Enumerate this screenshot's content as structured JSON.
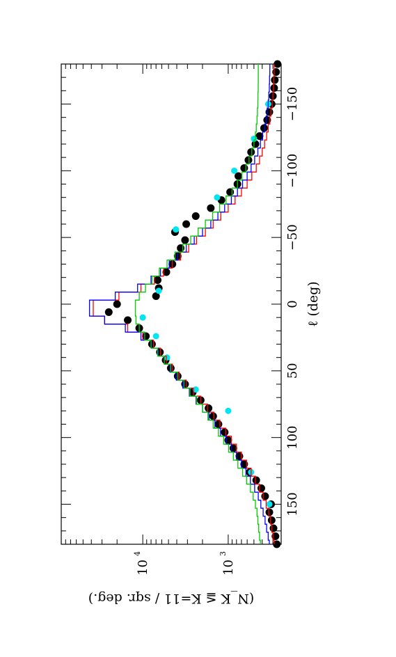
{
  "chart_data": {
    "type": "scatter",
    "orientation": "rotated-90",
    "xlabel": "ℓ (deg)",
    "ylabel": "(N_K ≦ K=11 / sqr. deg.)",
    "y_scale": "log",
    "xlim": [
      180,
      -180
    ],
    "ylim": [
      240,
      90000
    ],
    "x_ticks": [
      150,
      100,
      50,
      0,
      -50,
      -100,
      -150
    ],
    "x_tick_labels": [
      "150",
      "100",
      "50",
      "0",
      "−50",
      "−100",
      "−150"
    ],
    "y_tick_labels": [
      {
        "value": 10000,
        "base": "10",
        "exp": "4"
      },
      {
        "value": 1000,
        "base": "10",
        "exp": "3"
      }
    ],
    "grid": false,
    "series": [
      {
        "color": "#000000",
        "style": "dots",
        "x": [
          180,
          174,
          168,
          162,
          156,
          150,
          144,
          138,
          132,
          126,
          120,
          114,
          108,
          102,
          96,
          90,
          84,
          78,
          72,
          66,
          60,
          54,
          48,
          42,
          36,
          30,
          24,
          18,
          12,
          6,
          0,
          -6,
          -12,
          -18,
          -24,
          -30,
          -36,
          -42,
          -48,
          -54,
          -60,
          -66,
          -72,
          -78,
          -84,
          -90,
          -96,
          -102,
          -108,
          -114,
          -120,
          -126,
          -132,
          -138,
          -144,
          -150,
          -156,
          -162,
          -168,
          -174,
          -180
        ],
        "y": [
          270,
          280,
          295,
          310,
          330,
          315,
          370,
          410,
          470,
          560,
          650,
          740,
          870,
          1000,
          1100,
          1300,
          1500,
          1700,
          2100,
          2600,
          3200,
          3900,
          4700,
          5400,
          6300,
          7800,
          9200,
          11000,
          15000,
          25000,
          20000,
          7000,
          6500,
          6700,
          5300,
          4500,
          3900,
          3600,
          3200,
          4200,
          3100,
          2400,
          1600,
          1200,
          950,
          780,
          760,
          650,
          580,
          540,
          480,
          430,
          380,
          350,
          330,
          310,
          300,
          290,
          285,
          275,
          265
        ]
      },
      {
        "color": "#00e5ee",
        "style": "dots",
        "x": [
          150,
          126,
          80,
          64,
          40,
          24,
          10,
          -10,
          -56,
          -80,
          -100,
          -124,
          -150
        ],
        "y": [
          330,
          540,
          1000,
          2400,
          5200,
          7000,
          10000,
          6500,
          4100,
          1350,
          850,
          500,
          340
        ]
      },
      {
        "color": "#ff0000",
        "style": "step",
        "x": [
          180,
          174,
          168,
          162,
          156,
          150,
          144,
          138,
          132,
          126,
          120,
          114,
          108,
          102,
          96,
          90,
          84,
          78,
          72,
          66,
          60,
          54,
          48,
          42,
          36,
          30,
          24,
          18,
          12,
          6,
          0,
          -6,
          -12,
          -18,
          -24,
          -30,
          -36,
          -42,
          -48,
          -54,
          -60,
          -66,
          -72,
          -78,
          -84,
          -90,
          -96,
          -102,
          -108,
          -114,
          -120,
          -126,
          -132,
          -138,
          -144,
          -150,
          -156,
          -162,
          -168,
          -174,
          -180
        ],
        "y": [
          290,
          300,
          310,
          320,
          335,
          360,
          390,
          430,
          480,
          540,
          610,
          700,
          800,
          920,
          1070,
          1250,
          1470,
          1750,
          2100,
          2550,
          3100,
          3750,
          4500,
          5300,
          6200,
          7500,
          10000,
          15000,
          28000,
          38000,
          38000,
          19000,
          10500,
          7300,
          5700,
          4500,
          3600,
          2900,
          2350,
          1850,
          1500,
          1220,
          1000,
          830,
          700,
          600,
          530,
          470,
          430,
          400,
          375,
          355,
          340,
          325,
          315,
          305,
          300,
          295,
          292,
          290,
          290
        ]
      },
      {
        "color": "#0000ff",
        "style": "step",
        "x": [
          180,
          174,
          168,
          162,
          156,
          150,
          144,
          138,
          132,
          126,
          120,
          114,
          108,
          102,
          96,
          90,
          84,
          78,
          72,
          66,
          60,
          54,
          48,
          42,
          36,
          30,
          24,
          18,
          12,
          6,
          0,
          -6,
          -12,
          -18,
          -24,
          -30,
          -36,
          -42,
          -48,
          -54,
          -60,
          -66,
          -72,
          -78,
          -84,
          -90,
          -96,
          -102,
          -108,
          -114,
          -120,
          -126,
          -132,
          -138,
          -144,
          -150,
          -156,
          -162,
          -168,
          -174,
          -180
        ],
        "y": [
          330,
          340,
          355,
          370,
          390,
          415,
          445,
          490,
          550,
          620,
          700,
          800,
          920,
          1060,
          1230,
          1430,
          1680,
          2000,
          2380,
          2850,
          3400,
          4050,
          4800,
          5600,
          6600,
          7900,
          10500,
          16000,
          28000,
          42000,
          42000,
          21000,
          11500,
          8000,
          6200,
          4900,
          3900,
          3100,
          2500,
          2000,
          1600,
          1320,
          1100,
          920,
          780,
          680,
          600,
          540,
          490,
          450,
          420,
          395,
          375,
          360,
          350,
          340,
          335,
          330,
          328,
          326,
          325
        ]
      },
      {
        "color": "#00cc00",
        "style": "step",
        "x": [
          180,
          174,
          168,
          162,
          156,
          150,
          144,
          138,
          132,
          126,
          120,
          114,
          108,
          102,
          96,
          90,
          84,
          78,
          72,
          66,
          60,
          54,
          48,
          42,
          36,
          30,
          24,
          18,
          12,
          6,
          0,
          -6,
          -12,
          -18,
          -24,
          -30,
          -36,
          -42,
          -48,
          -54,
          -60,
          -66,
          -72,
          -78,
          -84,
          -90,
          -96,
          -102,
          -108,
          -114,
          -120,
          -126,
          -132,
          -138,
          -144,
          -150,
          -156,
          -162,
          -168,
          -174,
          -180
        ],
        "y": [
          420,
          430,
          440,
          450,
          460,
          480,
          510,
          550,
          610,
          680,
          770,
          870,
          990,
          1130,
          1300,
          1500,
          1730,
          2000,
          2350,
          2800,
          3300,
          3900,
          4700,
          5600,
          6700,
          8000,
          9500,
          11000,
          12000,
          12200,
          12200,
          11000,
          9300,
          7800,
          6400,
          5200,
          4200,
          3400,
          2750,
          2250,
          1850,
          1520,
          1260,
          1060,
          900,
          780,
          690,
          620,
          570,
          530,
          500,
          480,
          470,
          460,
          455,
          450,
          448,
          446,
          445,
          445,
          445
        ]
      }
    ]
  }
}
